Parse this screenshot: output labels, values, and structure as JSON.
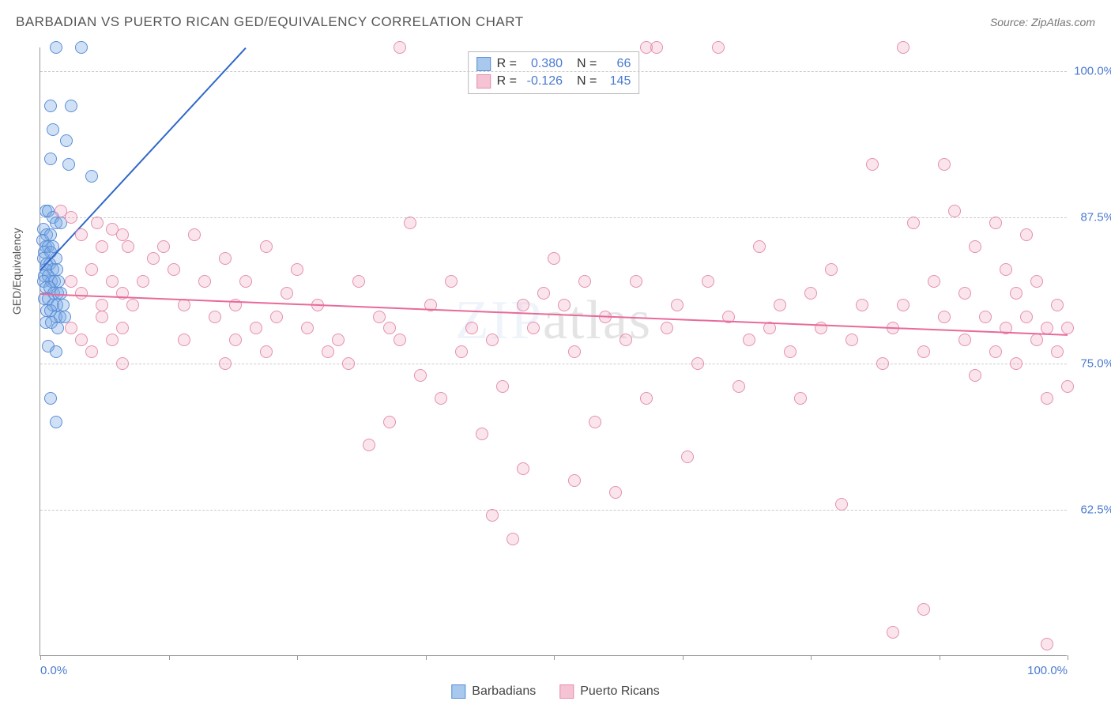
{
  "title": "BARBADIAN VS PUERTO RICAN GED/EQUIVALENCY CORRELATION CHART",
  "source_label": "Source: ZipAtlas.com",
  "watermark": {
    "part1": "ZIP",
    "part2": "atlas"
  },
  "y_axis_label": "GED/Equivalency",
  "chart": {
    "type": "scatter",
    "background_color": "#ffffff",
    "grid_color": "#cccccc",
    "axis_color": "#999999",
    "xlim": [
      0,
      100
    ],
    "ylim": [
      50,
      102
    ],
    "x_ticks": [
      0,
      12.5,
      25,
      37.5,
      50,
      62.5,
      75,
      87.5,
      100
    ],
    "x_tick_labels": {
      "0": "0.0%",
      "100": "100.0%"
    },
    "y_gridlines": [
      62.5,
      75.0,
      87.5,
      100.0
    ],
    "y_tick_labels": {
      "62.5": "62.5%",
      "75.0": "75.0%",
      "87.5": "87.5%",
      "100.0": "100.0%"
    },
    "marker_radius": 8,
    "series": [
      {
        "name": "Barbadians",
        "legend_label": "Barbadians",
        "fill_color": "rgba(120,170,230,0.35)",
        "stroke_color": "#5b8ed6",
        "swatch_fill": "#a8c8ed",
        "swatch_border": "#5b8ed6",
        "R_label": "R =",
        "R": "0.380",
        "N_label": "N =",
        "N": "66",
        "trend": {
          "x1": 0,
          "y1": 83,
          "x2": 20,
          "y2": 102,
          "color": "#2f67c9",
          "width": 2
        },
        "points": [
          [
            1.5,
            102
          ],
          [
            4,
            102
          ],
          [
            1,
            97
          ],
          [
            3,
            97
          ],
          [
            1.2,
            95
          ],
          [
            2.5,
            94
          ],
          [
            1,
            92.5
          ],
          [
            2.8,
            92
          ],
          [
            5,
            91
          ],
          [
            0.5,
            88
          ],
          [
            0.8,
            88
          ],
          [
            1.2,
            87.5
          ],
          [
            1.5,
            87
          ],
          [
            2,
            87
          ],
          [
            0.3,
            86.5
          ],
          [
            0.6,
            86
          ],
          [
            1,
            86
          ],
          [
            0.2,
            85.5
          ],
          [
            0.5,
            85
          ],
          [
            0.8,
            85
          ],
          [
            1.2,
            85
          ],
          [
            0.4,
            84.5
          ],
          [
            1,
            84.5
          ],
          [
            1.5,
            84
          ],
          [
            0.3,
            84
          ],
          [
            0.6,
            83.5
          ],
          [
            0.9,
            83.5
          ],
          [
            1.2,
            83
          ],
          [
            0.5,
            83
          ],
          [
            1.6,
            83
          ],
          [
            0.4,
            82.5
          ],
          [
            0.8,
            82.5
          ],
          [
            1.1,
            82
          ],
          [
            1.4,
            82
          ],
          [
            0.3,
            82
          ],
          [
            1.8,
            82
          ],
          [
            0.5,
            81.5
          ],
          [
            0.9,
            81.5
          ],
          [
            1.3,
            81
          ],
          [
            1.7,
            81
          ],
          [
            2,
            81
          ],
          [
            0.4,
            80.5
          ],
          [
            0.8,
            80.5
          ],
          [
            1.2,
            80
          ],
          [
            1.6,
            80
          ],
          [
            2.2,
            80
          ],
          [
            0.6,
            79.5
          ],
          [
            1,
            79.5
          ],
          [
            1.5,
            79
          ],
          [
            1.9,
            79
          ],
          [
            2.4,
            79
          ],
          [
            0.5,
            78.5
          ],
          [
            1.1,
            78.5
          ],
          [
            1.7,
            78
          ],
          [
            0.8,
            76.5
          ],
          [
            1.5,
            76
          ],
          [
            1,
            72
          ],
          [
            1.5,
            70
          ]
        ]
      },
      {
        "name": "Puerto Ricans",
        "legend_label": "Puerto Ricans",
        "fill_color": "rgba(240,150,180,0.25)",
        "stroke_color": "#e58fae",
        "swatch_fill": "#f5c3d4",
        "swatch_border": "#e58fae",
        "R_label": "R =",
        "R": "-0.126",
        "N_label": "N =",
        "N": "145",
        "trend": {
          "x1": 0,
          "y1": 81,
          "x2": 100,
          "y2": 77.5,
          "color": "#e86a9a",
          "width": 2
        },
        "points": [
          [
            2,
            88
          ],
          [
            3,
            87.5
          ],
          [
            4,
            86
          ],
          [
            5.5,
            87
          ],
          [
            6,
            85
          ],
          [
            7,
            86.5
          ],
          [
            8,
            86
          ],
          [
            8.5,
            85
          ],
          [
            3,
            82
          ],
          [
            4,
            81
          ],
          [
            5,
            83
          ],
          [
            6,
            80
          ],
          [
            7,
            82
          ],
          [
            8,
            81
          ],
          [
            9,
            80
          ],
          [
            3,
            78
          ],
          [
            4,
            77
          ],
          [
            5,
            76
          ],
          [
            6,
            79
          ],
          [
            7,
            77
          ],
          [
            8,
            78
          ],
          [
            8,
            75
          ],
          [
            10,
            82
          ],
          [
            11,
            84
          ],
          [
            12,
            85
          ],
          [
            13,
            83
          ],
          [
            14,
            80
          ],
          [
            14,
            77
          ],
          [
            15,
            86
          ],
          [
            16,
            82
          ],
          [
            17,
            79
          ],
          [
            18,
            84
          ],
          [
            18,
            75
          ],
          [
            19,
            80
          ],
          [
            19,
            77
          ],
          [
            20,
            82
          ],
          [
            21,
            78
          ],
          [
            22,
            85
          ],
          [
            22,
            76
          ],
          [
            23,
            79
          ],
          [
            24,
            81
          ],
          [
            25,
            83
          ],
          [
            26,
            78
          ],
          [
            27,
            80
          ],
          [
            28,
            76
          ],
          [
            29,
            77
          ],
          [
            30,
            75
          ],
          [
            31,
            82
          ],
          [
            32,
            68
          ],
          [
            33,
            79
          ],
          [
            34,
            70
          ],
          [
            34,
            78
          ],
          [
            35,
            102
          ],
          [
            35,
            77
          ],
          [
            36,
            87
          ],
          [
            37,
            74
          ],
          [
            38,
            80
          ],
          [
            39,
            72
          ],
          [
            40,
            82
          ],
          [
            41,
            76
          ],
          [
            42,
            78
          ],
          [
            43,
            69
          ],
          [
            44,
            77
          ],
          [
            44,
            62
          ],
          [
            45,
            73
          ],
          [
            46,
            60
          ],
          [
            47,
            80
          ],
          [
            47,
            66
          ],
          [
            48,
            78
          ],
          [
            49,
            81
          ],
          [
            50,
            84
          ],
          [
            51,
            80
          ],
          [
            52,
            76
          ],
          [
            52,
            65
          ],
          [
            53,
            82
          ],
          [
            54,
            70
          ],
          [
            55,
            79
          ],
          [
            56,
            64
          ],
          [
            57,
            77
          ],
          [
            58,
            82
          ],
          [
            59,
            72
          ],
          [
            59,
            102
          ],
          [
            60,
            102
          ],
          [
            61,
            78
          ],
          [
            62,
            80
          ],
          [
            63,
            67
          ],
          [
            64,
            75
          ],
          [
            65,
            82
          ],
          [
            66,
            102
          ],
          [
            67,
            79
          ],
          [
            68,
            73
          ],
          [
            69,
            77
          ],
          [
            70,
            85
          ],
          [
            71,
            78
          ],
          [
            72,
            80
          ],
          [
            73,
            76
          ],
          [
            74,
            72
          ],
          [
            75,
            81
          ],
          [
            76,
            78
          ],
          [
            77,
            83
          ],
          [
            78,
            63
          ],
          [
            79,
            77
          ],
          [
            80,
            80
          ],
          [
            81,
            92
          ],
          [
            82,
            75
          ],
          [
            83,
            78
          ],
          [
            83,
            52
          ],
          [
            84,
            102
          ],
          [
            84,
            80
          ],
          [
            85,
            87
          ],
          [
            86,
            76
          ],
          [
            86,
            54
          ],
          [
            87,
            82
          ],
          [
            88,
            79
          ],
          [
            88,
            92
          ],
          [
            89,
            88
          ],
          [
            90,
            77
          ],
          [
            90,
            81
          ],
          [
            91,
            85
          ],
          [
            91,
            74
          ],
          [
            92,
            79
          ],
          [
            93,
            87
          ],
          [
            93,
            76
          ],
          [
            94,
            83
          ],
          [
            94,
            78
          ],
          [
            95,
            81
          ],
          [
            95,
            75
          ],
          [
            96,
            79
          ],
          [
            96,
            86
          ],
          [
            97,
            77
          ],
          [
            97,
            82
          ],
          [
            98,
            78
          ],
          [
            98,
            72
          ],
          [
            98,
            51
          ],
          [
            99,
            80
          ],
          [
            99,
            76
          ],
          [
            100,
            78
          ],
          [
            100,
            73
          ]
        ]
      }
    ]
  },
  "stats_text_color": "#4a7bd0"
}
